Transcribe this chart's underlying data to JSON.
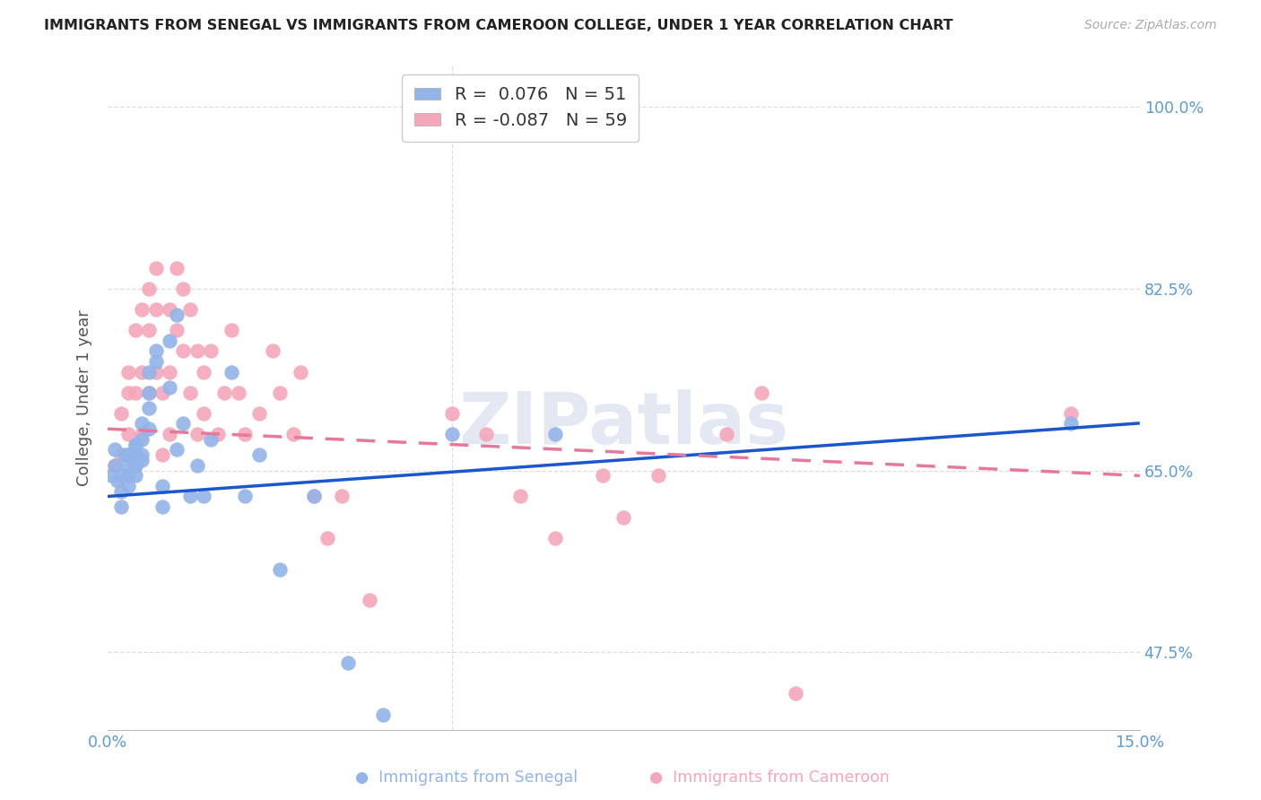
{
  "title": "IMMIGRANTS FROM SENEGAL VS IMMIGRANTS FROM CAMEROON COLLEGE, UNDER 1 YEAR CORRELATION CHART",
  "source": "Source: ZipAtlas.com",
  "ylabel": "College, Under 1 year",
  "xmin": 0.0,
  "xmax": 0.15,
  "ymin": 0.4,
  "ymax": 1.04,
  "yticks": [
    0.475,
    0.65,
    0.825,
    1.0
  ],
  "ytick_labels": [
    "47.5%",
    "65.0%",
    "82.5%",
    "100.0%"
  ],
  "xtick_vals": [
    0.0,
    0.15
  ],
  "xtick_labels": [
    "0.0%",
    "15.0%"
  ],
  "legend1_r": "0.076",
  "legend1_n": "51",
  "legend2_r": "-0.087",
  "legend2_n": "59",
  "senegal_color": "#92b4e8",
  "cameroon_color": "#f4a7b9",
  "trend_senegal_color": "#1a56cc",
  "trend_cameroon_color": "#e8789a",
  "watermark": "ZIPatlas",
  "grid_color": "#dddddd",
  "vline_x": 0.05,
  "senegal_x": [
    0.0005,
    0.001,
    0.001,
    0.0015,
    0.002,
    0.002,
    0.002,
    0.0025,
    0.003,
    0.003,
    0.003,
    0.003,
    0.003,
    0.003,
    0.004,
    0.004,
    0.004,
    0.004,
    0.004,
    0.004,
    0.005,
    0.005,
    0.005,
    0.005,
    0.006,
    0.006,
    0.006,
    0.006,
    0.007,
    0.007,
    0.008,
    0.008,
    0.009,
    0.009,
    0.01,
    0.01,
    0.011,
    0.012,
    0.013,
    0.014,
    0.015,
    0.018,
    0.02,
    0.022,
    0.025,
    0.03,
    0.035,
    0.04,
    0.05,
    0.065,
    0.14
  ],
  "senegal_y": [
    0.645,
    0.67,
    0.655,
    0.64,
    0.645,
    0.63,
    0.615,
    0.665,
    0.665,
    0.655,
    0.645,
    0.635,
    0.665,
    0.665,
    0.675,
    0.655,
    0.645,
    0.655,
    0.665,
    0.675,
    0.695,
    0.68,
    0.665,
    0.66,
    0.745,
    0.725,
    0.71,
    0.69,
    0.765,
    0.755,
    0.635,
    0.615,
    0.775,
    0.73,
    0.8,
    0.67,
    0.695,
    0.625,
    0.655,
    0.625,
    0.68,
    0.745,
    0.625,
    0.665,
    0.555,
    0.625,
    0.465,
    0.415,
    0.685,
    0.685,
    0.695
  ],
  "cameroon_x": [
    0.001,
    0.002,
    0.002,
    0.003,
    0.003,
    0.003,
    0.004,
    0.004,
    0.004,
    0.005,
    0.005,
    0.005,
    0.006,
    0.006,
    0.006,
    0.007,
    0.007,
    0.007,
    0.008,
    0.008,
    0.009,
    0.009,
    0.009,
    0.01,
    0.01,
    0.011,
    0.011,
    0.012,
    0.012,
    0.013,
    0.013,
    0.014,
    0.014,
    0.015,
    0.016,
    0.017,
    0.018,
    0.019,
    0.02,
    0.022,
    0.024,
    0.025,
    0.027,
    0.028,
    0.03,
    0.032,
    0.034,
    0.038,
    0.05,
    0.055,
    0.06,
    0.065,
    0.072,
    0.075,
    0.08,
    0.09,
    0.095,
    0.1,
    0.14
  ],
  "cameroon_y": [
    0.655,
    0.665,
    0.705,
    0.685,
    0.745,
    0.725,
    0.725,
    0.785,
    0.665,
    0.805,
    0.745,
    0.685,
    0.825,
    0.785,
    0.725,
    0.845,
    0.805,
    0.745,
    0.725,
    0.665,
    0.805,
    0.745,
    0.685,
    0.845,
    0.785,
    0.825,
    0.765,
    0.805,
    0.725,
    0.765,
    0.685,
    0.745,
    0.705,
    0.765,
    0.685,
    0.725,
    0.785,
    0.725,
    0.685,
    0.705,
    0.765,
    0.725,
    0.685,
    0.745,
    0.625,
    0.585,
    0.625,
    0.525,
    0.705,
    0.685,
    0.625,
    0.585,
    0.645,
    0.605,
    0.645,
    0.685,
    0.725,
    0.435,
    0.705
  ]
}
